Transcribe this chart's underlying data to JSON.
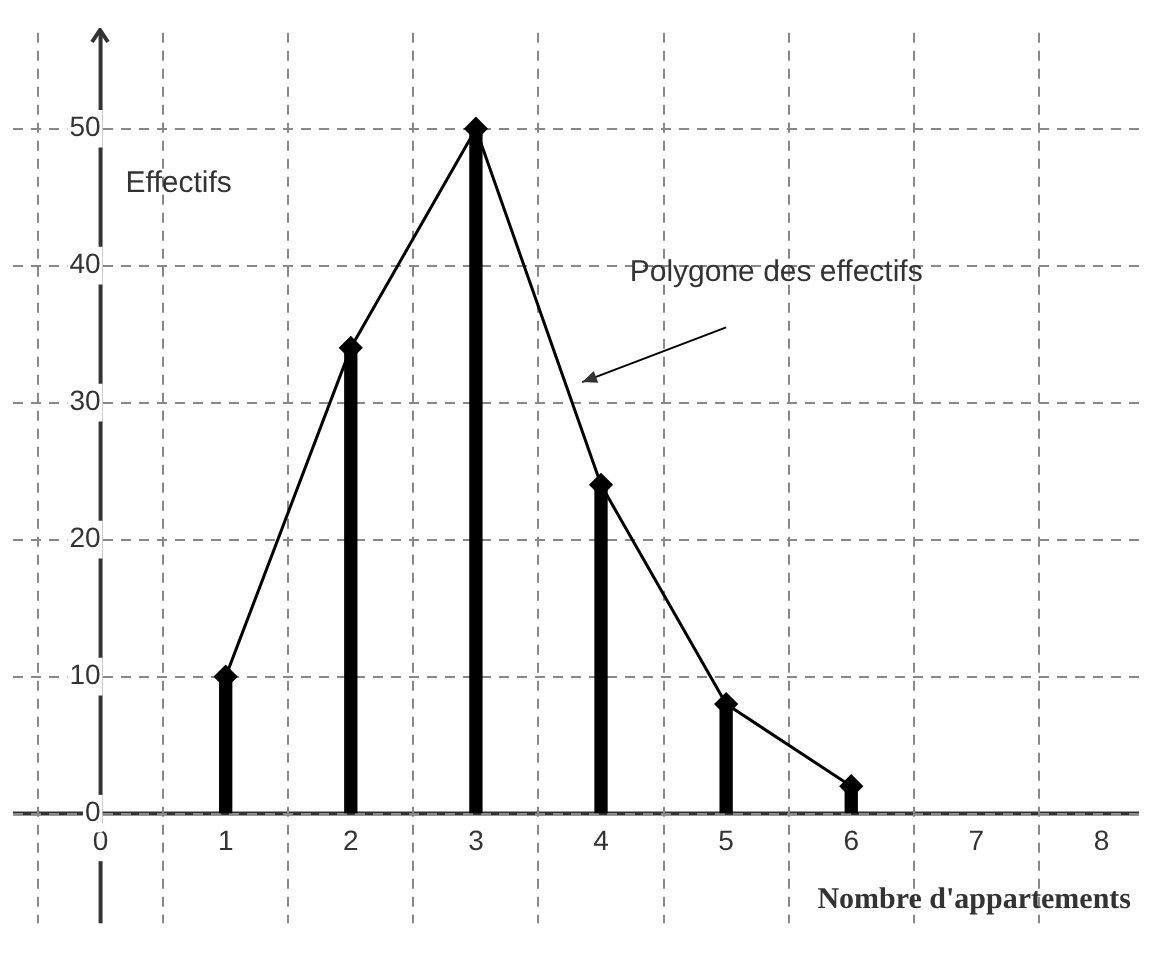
{
  "chart_data": {
    "type": "bar",
    "xlabel": "Nombre d'appartements",
    "ylabel": "Effectifs",
    "x": [
      1,
      2,
      3,
      4,
      5,
      6
    ],
    "series": [
      {
        "color": "#000000",
        "values": [
          10,
          34,
          50,
          24,
          8,
          2
        ]
      },
      {
        "type": "line",
        "name": "Polygone des effectifs",
        "color": "#000000",
        "values": [
          10,
          34,
          50,
          24,
          8,
          2
        ],
        "marker": "diamond",
        "line_style": "solid"
      }
    ],
    "xlim": [
      -0.7,
      8.3
    ],
    "ylim": [
      -8,
      57
    ],
    "xticks": [
      0,
      1,
      2,
      3,
      4,
      5,
      6,
      7,
      8
    ],
    "yticks": [
      0,
      10,
      20,
      30,
      40,
      50
    ],
    "grid": true,
    "legend": false
  }
}
